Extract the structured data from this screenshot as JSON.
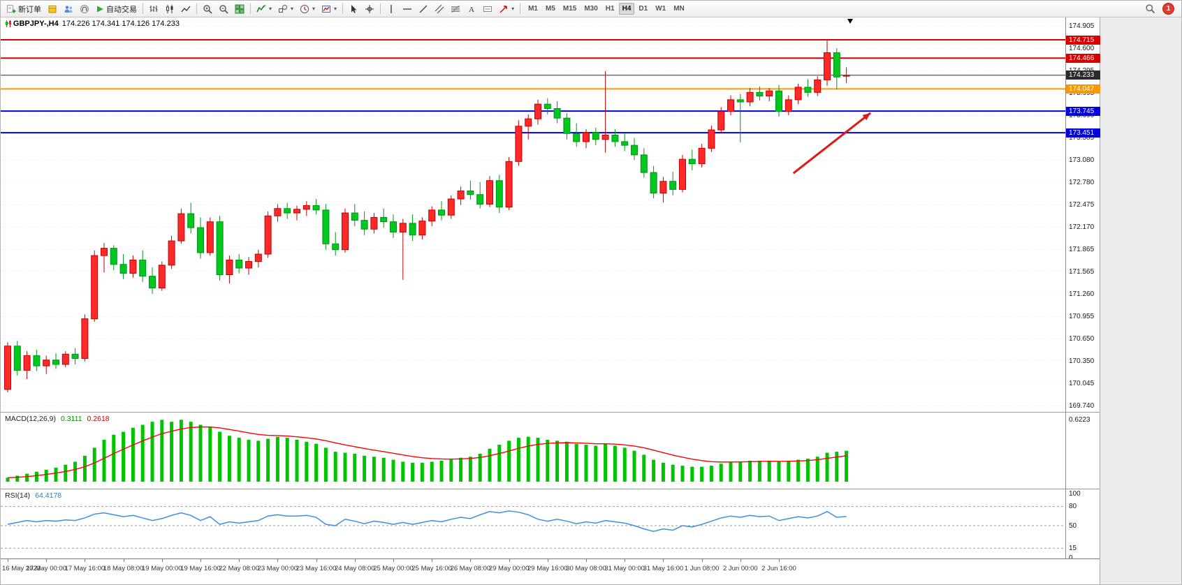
{
  "ui": {
    "toolbar": {
      "new_order_label": "新订单",
      "autotrading_label": "自动交易",
      "timeframes": [
        "M1",
        "M5",
        "M15",
        "M30",
        "H1",
        "H4",
        "D1",
        "W1",
        "MN"
      ],
      "active_timeframe": "H4",
      "notification_count": "1"
    },
    "chart_header": {
      "symbol": "GBPJPY-,H4",
      "ohlc": "174.226 174.341 174.126 174.233"
    },
    "colors": {
      "up": "#fe2a2a",
      "up_border": "#c40000",
      "down": "#00c81e",
      "down_border": "#009416",
      "grid": "#e0e0e0",
      "level_red": "#d80000",
      "level_orange": "#f59a00",
      "level_blue": "#0000dd",
      "current_price": "#2b2b2b",
      "arrow": "#e01818"
    }
  },
  "chart_data": {
    "type": "candlestick",
    "title": "GBPJPY-,H4",
    "timeframe": "H4",
    "ylim": [
      169.74,
      174.905
    ],
    "price_axis_ticks": [
      "174.905",
      "174.600",
      "174.295",
      "173.995",
      "173.690",
      "173.385",
      "173.080",
      "172.780",
      "172.475",
      "172.170",
      "171.865",
      "171.565",
      "171.260",
      "170.955",
      "170.650",
      "170.350",
      "170.045",
      "169.740"
    ],
    "horizontal_levels": [
      {
        "price": 174.715,
        "label": "174.715",
        "color": "#d80000",
        "width": 2
      },
      {
        "price": 174.466,
        "label": "174.466",
        "color": "#d80000",
        "width": 2
      },
      {
        "price": 174.233,
        "label": "174.233",
        "color": "#2b2b2b",
        "width": 1,
        "current": true
      },
      {
        "price": 174.047,
        "label": "174.047",
        "color": "#f59a00",
        "width": 2
      },
      {
        "price": 173.745,
        "label": "173.745",
        "color": "#0000dd",
        "width": 2
      },
      {
        "price": 173.451,
        "label": "173.451",
        "color": "#0000dd",
        "width": 2
      }
    ],
    "current_price": 174.233,
    "x_labels": [
      [
        "16 May 2023",
        0
      ],
      [
        "17 May 00:00",
        4
      ],
      [
        "17 May 16:00",
        8
      ],
      [
        "18 May 08:00",
        12
      ],
      [
        "19 May 00:00",
        16
      ],
      [
        "19 May 16:00",
        20
      ],
      [
        "22 May 08:00",
        24
      ],
      [
        "23 May 00:00",
        28
      ],
      [
        "23 May 16:00",
        32
      ],
      [
        "24 May 08:00",
        36
      ],
      [
        "25 May 00:00",
        40
      ],
      [
        "25 May 16:00",
        44
      ],
      [
        "26 May 08:00",
        48
      ],
      [
        "29 May 00:00",
        52
      ],
      [
        "29 May 16:00",
        56
      ],
      [
        "30 May 08:00",
        60
      ],
      [
        "31 May 00:00",
        64
      ],
      [
        "31 May 16:00",
        68
      ],
      [
        "1 Jun 08:00",
        72
      ],
      [
        "2 Jun 00:00",
        76
      ],
      [
        "2 Jun 16:00",
        80
      ]
    ],
    "candles": [
      [
        169.96,
        170.6,
        169.92,
        170.55
      ],
      [
        170.55,
        170.62,
        170.15,
        170.22
      ],
      [
        170.22,
        170.48,
        170.1,
        170.42
      ],
      [
        170.42,
        170.5,
        170.21,
        170.28
      ],
      [
        170.28,
        170.42,
        170.17,
        170.36
      ],
      [
        170.36,
        170.45,
        170.24,
        170.3
      ],
      [
        170.3,
        170.48,
        170.26,
        170.44
      ],
      [
        170.44,
        170.52,
        170.3,
        170.38
      ],
      [
        170.38,
        170.98,
        170.34,
        170.92
      ],
      [
        170.92,
        171.85,
        170.88,
        171.78
      ],
      [
        171.78,
        171.95,
        171.55,
        171.88
      ],
      [
        171.88,
        171.92,
        171.58,
        171.66
      ],
      [
        171.66,
        171.8,
        171.46,
        171.54
      ],
      [
        171.54,
        171.78,
        171.48,
        171.72
      ],
      [
        171.72,
        171.85,
        171.42,
        171.5
      ],
      [
        171.5,
        171.62,
        171.26,
        171.34
      ],
      [
        171.34,
        171.7,
        171.3,
        171.65
      ],
      [
        171.65,
        172.05,
        171.6,
        171.98
      ],
      [
        171.98,
        172.42,
        171.94,
        172.35
      ],
      [
        172.35,
        172.5,
        172.08,
        172.16
      ],
      [
        172.16,
        172.3,
        171.74,
        171.82
      ],
      [
        171.82,
        172.3,
        171.78,
        172.24
      ],
      [
        172.24,
        172.32,
        171.44,
        171.52
      ],
      [
        171.52,
        171.78,
        171.4,
        171.72
      ],
      [
        171.72,
        171.8,
        171.54,
        171.61
      ],
      [
        171.61,
        171.76,
        171.52,
        171.7
      ],
      [
        171.7,
        171.86,
        171.62,
        171.8
      ],
      [
        171.8,
        172.38,
        171.75,
        172.32
      ],
      [
        172.32,
        172.48,
        172.24,
        172.42
      ],
      [
        172.42,
        172.5,
        172.28,
        172.36
      ],
      [
        172.36,
        172.46,
        172.26,
        172.41
      ],
      [
        172.41,
        172.52,
        172.32,
        172.46
      ],
      [
        172.46,
        172.55,
        172.34,
        172.4
      ],
      [
        172.4,
        172.48,
        171.86,
        171.94
      ],
      [
        171.94,
        172.1,
        171.78,
        171.86
      ],
      [
        171.86,
        172.42,
        171.82,
        172.36
      ],
      [
        172.36,
        172.48,
        172.18,
        172.26
      ],
      [
        172.26,
        172.38,
        172.06,
        172.14
      ],
      [
        172.14,
        172.36,
        172.08,
        172.3
      ],
      [
        172.3,
        172.42,
        172.16,
        172.24
      ],
      [
        172.24,
        172.34,
        172.02,
        172.1
      ],
      [
        172.1,
        172.28,
        171.45,
        172.22
      ],
      [
        172.22,
        172.34,
        171.98,
        172.06
      ],
      [
        172.06,
        172.3,
        172.0,
        172.25
      ],
      [
        172.25,
        172.45,
        172.18,
        172.4
      ],
      [
        172.4,
        172.52,
        172.26,
        172.33
      ],
      [
        172.33,
        172.6,
        172.28,
        172.55
      ],
      [
        172.55,
        172.72,
        172.47,
        172.66
      ],
      [
        172.66,
        172.8,
        172.54,
        172.61
      ],
      [
        172.61,
        172.78,
        172.42,
        172.48
      ],
      [
        172.48,
        172.86,
        172.44,
        172.8
      ],
      [
        172.8,
        172.88,
        172.36,
        172.44
      ],
      [
        172.44,
        173.12,
        172.4,
        173.06
      ],
      [
        173.06,
        173.62,
        173.0,
        173.54
      ],
      [
        173.54,
        173.7,
        173.36,
        173.64
      ],
      [
        173.64,
        173.9,
        173.56,
        173.84
      ],
      [
        173.84,
        173.92,
        173.7,
        173.78
      ],
      [
        173.78,
        173.88,
        173.58,
        173.65
      ],
      [
        173.65,
        173.72,
        173.36,
        173.44
      ],
      [
        173.44,
        173.58,
        173.26,
        173.33
      ],
      [
        173.33,
        173.5,
        173.24,
        173.45
      ],
      [
        173.45,
        173.52,
        173.28,
        173.36
      ],
      [
        173.36,
        174.29,
        173.18,
        173.42
      ],
      [
        173.42,
        173.5,
        173.26,
        173.33
      ],
      [
        173.33,
        173.44,
        173.2,
        173.28
      ],
      [
        173.28,
        173.38,
        173.08,
        173.15
      ],
      [
        173.15,
        173.24,
        172.84,
        172.91
      ],
      [
        172.91,
        173.0,
        172.56,
        172.63
      ],
      [
        172.63,
        172.85,
        172.5,
        172.79
      ],
      [
        172.79,
        172.92,
        172.6,
        172.68
      ],
      [
        172.68,
        173.15,
        172.64,
        173.09
      ],
      [
        173.09,
        173.22,
        172.94,
        173.03
      ],
      [
        173.03,
        173.3,
        172.98,
        173.24
      ],
      [
        173.24,
        173.55,
        173.19,
        173.49
      ],
      [
        173.49,
        173.8,
        173.44,
        173.74
      ],
      [
        173.74,
        173.96,
        173.69,
        173.9
      ],
      [
        173.9,
        173.98,
        173.32,
        173.87
      ],
      [
        173.87,
        174.06,
        173.81,
        174.0
      ],
      [
        174.0,
        174.08,
        173.89,
        173.95
      ],
      [
        173.95,
        174.06,
        173.88,
        174.02
      ],
      [
        174.02,
        174.1,
        173.67,
        173.74
      ],
      [
        173.74,
        173.96,
        173.69,
        173.9
      ],
      [
        173.9,
        174.12,
        173.84,
        174.07
      ],
      [
        174.07,
        174.18,
        173.94,
        174.0
      ],
      [
        174.0,
        174.22,
        173.95,
        174.17
      ],
      [
        174.17,
        174.72,
        174.09,
        174.54
      ],
      [
        174.54,
        174.6,
        174.04,
        174.21
      ],
      [
        174.226,
        174.341,
        174.126,
        174.233
      ]
    ],
    "annotations": [
      {
        "type": "arrow",
        "from": {
          "index": 81.5,
          "price": 172.9
        },
        "to": {
          "index": 89.5,
          "price": 173.72
        },
        "color": "#e01818"
      }
    ],
    "indicators": {
      "macd": {
        "label": "MACD(12,26,9)",
        "main_value_label": "0.3111",
        "signal_value_label": "0.2618",
        "axis_max_label": "0.6223",
        "axis_max": 0.6223,
        "signal_ema_period": 9,
        "colors": {
          "histogram": "#00c400",
          "signal": "#ff0000"
        },
        "histogram": [
          0.04,
          0.06,
          0.08,
          0.1,
          0.12,
          0.14,
          0.17,
          0.2,
          0.26,
          0.34,
          0.42,
          0.47,
          0.5,
          0.54,
          0.57,
          0.6,
          0.62,
          0.6,
          0.62,
          0.6,
          0.57,
          0.55,
          0.5,
          0.46,
          0.44,
          0.42,
          0.41,
          0.43,
          0.45,
          0.44,
          0.42,
          0.4,
          0.38,
          0.34,
          0.3,
          0.29,
          0.28,
          0.26,
          0.25,
          0.24,
          0.22,
          0.2,
          0.19,
          0.19,
          0.2,
          0.21,
          0.22,
          0.24,
          0.25,
          0.28,
          0.33,
          0.37,
          0.41,
          0.44,
          0.45,
          0.44,
          0.42,
          0.41,
          0.4,
          0.38,
          0.37,
          0.36,
          0.38,
          0.36,
          0.34,
          0.31,
          0.27,
          0.22,
          0.19,
          0.17,
          0.16,
          0.15,
          0.15,
          0.16,
          0.18,
          0.2,
          0.2,
          0.21,
          0.21,
          0.21,
          0.2,
          0.21,
          0.22,
          0.23,
          0.25,
          0.29,
          0.3,
          0.31
        ]
      },
      "rsi": {
        "label": "RSI(14)",
        "value_label": "64.4178",
        "value": 64.4178,
        "color": "#3f8fdd",
        "axis_labels": [
          "100",
          "80",
          "50",
          "15",
          "0"
        ],
        "axis_values": [
          100,
          80,
          50,
          15,
          0
        ],
        "levels": [
          80,
          50,
          15
        ],
        "values": [
          52,
          55,
          58,
          56,
          58,
          57,
          59,
          58,
          62,
          68,
          70,
          67,
          64,
          66,
          62,
          58,
          61,
          66,
          70,
          66,
          58,
          64,
          52,
          56,
          54,
          56,
          58,
          65,
          67,
          65,
          65,
          66,
          63,
          52,
          50,
          60,
          57,
          53,
          57,
          55,
          52,
          55,
          52,
          55,
          58,
          56,
          60,
          63,
          61,
          67,
          72,
          70,
          73,
          71,
          67,
          60,
          57,
          60,
          57,
          53,
          56,
          54,
          58,
          56,
          54,
          50,
          45,
          41,
          45,
          43,
          50,
          48,
          52,
          57,
          62,
          65,
          63,
          66,
          64,
          65,
          58,
          61,
          64,
          62,
          65,
          72,
          63,
          64.4
        ]
      }
    }
  }
}
